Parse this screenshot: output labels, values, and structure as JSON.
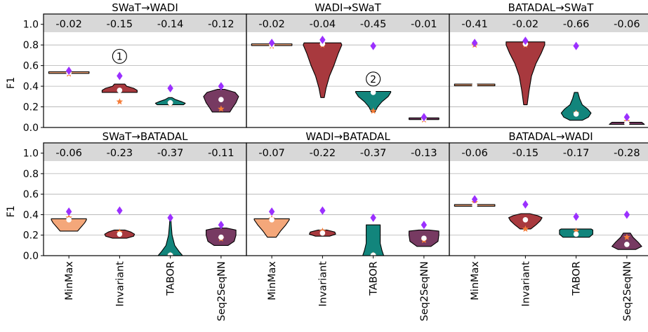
{
  "chart_data": {
    "type": "violin",
    "ylabel": "F1",
    "ylim": [
      0,
      1.1
    ],
    "yticks": [
      "0.0",
      "0.2",
      "0.4",
      "0.6",
      "0.8",
      "1.0"
    ],
    "categories": [
      "MinMax",
      "Invariant",
      "TABOR",
      "Seq2SeqNN"
    ],
    "colors": {
      "MinMax": "#f4a77a",
      "Invariant": "#a8393e",
      "TABOR": "#12857c",
      "Seq2SeqNN": "#773a62",
      "band": "#d8d8d8",
      "diamond": "#9b30ff",
      "star": "#f57c38",
      "median": "#ffffff"
    },
    "marker_legend": {
      "diamond": "purple diamond marker",
      "star": "orange star marker",
      "dot": "white dot (median)"
    },
    "panels": [
      {
        "title": "SWaT→WADI",
        "deltas": [
          "-0.02",
          "-0.15",
          "-0.14",
          "-0.12"
        ],
        "violins": [
          {
            "profile": [
              [
                0.53,
                0.23
              ],
              [
                0.535,
                0.23
              ]
            ],
            "median": 0.533,
            "diamond": 0.55,
            "star": 0.52
          },
          {
            "profile": [
              [
                0.34,
                0.2
              ],
              [
                0.36,
                0.2
              ],
              [
                0.38,
                0.16
              ],
              [
                0.4,
                0.08
              ],
              [
                0.42,
                0.06
              ]
            ],
            "median": 0.36,
            "diamond": 0.5,
            "star": 0.25
          },
          {
            "profile": [
              [
                0.22,
                0.15
              ],
              [
                0.235,
                0.17
              ],
              [
                0.25,
                0.13
              ],
              [
                0.27,
                0.06
              ],
              [
                0.29,
                0.02
              ]
            ],
            "median": 0.24,
            "diamond": 0.38,
            "star": 0.235
          },
          {
            "profile": [
              [
                0.15,
                0.1
              ],
              [
                0.19,
                0.13
              ],
              [
                0.24,
                0.17
              ],
              [
                0.3,
                0.2
              ],
              [
                0.34,
                0.16
              ],
              [
                0.37,
                0.04
              ]
            ],
            "median": 0.27,
            "diamond": 0.4,
            "star": 0.18
          }
        ],
        "annotation": {
          "text": "1",
          "category": "Invariant",
          "y": 0.69
        }
      },
      {
        "title": "WADI→SWaT",
        "deltas": [
          "-0.02",
          "-0.04",
          "-0.45",
          "-0.01"
        ],
        "violins": [
          {
            "profile": [
              [
                0.8,
                0.23
              ],
              [
                0.805,
                0.23
              ]
            ],
            "median": 0.8,
            "diamond": 0.82,
            "star": 0.79
          },
          {
            "profile": [
              [
                0.29,
                0.02
              ],
              [
                0.38,
                0.04
              ],
              [
                0.5,
                0.08
              ],
              [
                0.6,
                0.13
              ],
              [
                0.72,
                0.18
              ],
              [
                0.8,
                0.22
              ],
              [
                0.82,
                0.21
              ]
            ],
            "median": 0.81,
            "diamond": 0.85,
            "star": 0.8
          },
          {
            "profile": [
              [
                0.15,
                0.02
              ],
              [
                0.2,
                0.05
              ],
              [
                0.25,
                0.1
              ],
              [
                0.3,
                0.17
              ],
              [
                0.34,
                0.2
              ],
              [
                0.35,
                0.2
              ]
            ],
            "median": 0.34,
            "diamond": 0.79,
            "star": 0.16
          },
          {
            "profile": [
              [
                0.08,
                0.17
              ],
              [
                0.09,
                0.17
              ]
            ],
            "median": 0.085,
            "diamond": 0.1,
            "star": 0.075
          }
        ],
        "annotation": {
          "text": "2",
          "category": "TABOR",
          "y": 0.47
        }
      },
      {
        "title": "BATADAL→SWaT",
        "deltas": [
          "-0.41",
          "-0.02",
          "-0.66",
          "-0.06"
        ],
        "violins": [
          {
            "profile": [
              [
                0.405,
                0.23
              ],
              [
                0.42,
                0.23
              ]
            ],
            "median": 0.41,
            "diamond": 0.82,
            "star": 0.8
          },
          {
            "profile": [
              [
                0.22,
                0.02
              ],
              [
                0.35,
                0.04
              ],
              [
                0.5,
                0.07
              ],
              [
                0.62,
                0.12
              ],
              [
                0.72,
                0.18
              ],
              [
                0.8,
                0.22
              ],
              [
                0.83,
                0.22
              ]
            ],
            "median": 0.81,
            "diamond": 0.84,
            "star": 0.8
          },
          {
            "profile": [
              [
                0.07,
                0.07
              ],
              [
                0.1,
                0.14
              ],
              [
                0.14,
                0.17
              ],
              [
                0.18,
                0.13
              ],
              [
                0.22,
                0.07
              ],
              [
                0.28,
                0.04
              ],
              [
                0.34,
                0.02
              ]
            ],
            "median": 0.13,
            "diamond": 0.79,
            "star": 0.14
          },
          {
            "profile": [
              [
                0.03,
                0.2
              ],
              [
                0.05,
                0.17
              ]
            ],
            "median": 0.04,
            "diamond": 0.1,
            "star": 0.06
          }
        ],
        "annotation": null
      },
      {
        "title": "SWaT→BATADAL",
        "deltas": [
          "-0.06",
          "-0.23",
          "-0.37",
          "-0.11"
        ],
        "violins": [
          {
            "profile": [
              [
                0.24,
                0.1
              ],
              [
                0.28,
                0.14
              ],
              [
                0.32,
                0.18
              ],
              [
                0.35,
                0.2
              ],
              [
                0.36,
                0.2
              ]
            ],
            "median": 0.35,
            "diamond": 0.43,
            "star": 0.37
          },
          {
            "profile": [
              [
                0.17,
                0.08
              ],
              [
                0.19,
                0.16
              ],
              [
                0.21,
                0.17
              ],
              [
                0.23,
                0.13
              ],
              [
                0.25,
                0.06
              ]
            ],
            "median": 0.21,
            "diamond": 0.44,
            "star": 0.23
          },
          {
            "profile": [
              [
                0.0,
                0.14
              ],
              [
                0.04,
                0.1
              ],
              [
                0.1,
                0.05
              ],
              [
                0.2,
                0.02
              ],
              [
                0.3,
                0.01
              ],
              [
                0.37,
                0.005
              ]
            ],
            "median": 0.005,
            "diamond": 0.37,
            "star": 0.005
          },
          {
            "profile": [
              [
                0.1,
                0.08
              ],
              [
                0.14,
                0.15
              ],
              [
                0.2,
                0.17
              ],
              [
                0.25,
                0.17
              ],
              [
                0.27,
                0.06
              ]
            ],
            "median": 0.18,
            "diamond": 0.3,
            "star": 0.165
          }
        ],
        "annotation": null
      },
      {
        "title": "WADI→BATADAL",
        "deltas": [
          "-0.07",
          "-0.22",
          "-0.37",
          "-0.13"
        ],
        "violins": [
          {
            "profile": [
              [
                0.18,
                0.05
              ],
              [
                0.24,
                0.1
              ],
              [
                0.3,
                0.16
              ],
              [
                0.35,
                0.2
              ],
              [
                0.36,
                0.2
              ]
            ],
            "median": 0.35,
            "diamond": 0.43,
            "star": 0.36
          },
          {
            "profile": [
              [
                0.19,
                0.08
              ],
              [
                0.21,
                0.15
              ],
              [
                0.23,
                0.14
              ],
              [
                0.25,
                0.05
              ]
            ],
            "median": 0.22,
            "diamond": 0.44,
            "star": 0.24
          },
          {
            "profile": [
              [
                0.0,
                0.12
              ],
              [
                0.05,
                0.1
              ],
              [
                0.12,
                0.08
              ],
              [
                0.2,
                0.08
              ],
              [
                0.28,
                0.08
              ],
              [
                0.3,
                0.08
              ]
            ],
            "median": 0.005,
            "diamond": 0.37,
            "star": 0.005
          },
          {
            "profile": [
              [
                0.09,
                0.08
              ],
              [
                0.14,
                0.16
              ],
              [
                0.2,
                0.17
              ],
              [
                0.24,
                0.17
              ],
              [
                0.25,
                0.06
              ]
            ],
            "median": 0.17,
            "diamond": 0.3,
            "star": 0.15
          }
        ],
        "annotation": null
      },
      {
        "title": "BATADAL→WADI",
        "deltas": [
          "-0.06",
          "-0.15",
          "-0.17",
          "-0.28"
        ],
        "violins": [
          {
            "profile": [
              [
                0.485,
                0.23
              ],
              [
                0.495,
                0.23
              ]
            ],
            "median": 0.49,
            "diamond": 0.55,
            "star": 0.52
          },
          {
            "profile": [
              [
                0.26,
                0.06
              ],
              [
                0.3,
                0.12
              ],
              [
                0.34,
                0.17
              ],
              [
                0.37,
                0.19
              ],
              [
                0.39,
                0.14
              ],
              [
                0.41,
                0.05
              ]
            ],
            "median": 0.35,
            "diamond": 0.5,
            "star": 0.26
          },
          {
            "profile": [
              [
                0.18,
                0.15
              ],
              [
                0.21,
                0.19
              ],
              [
                0.25,
                0.19
              ],
              [
                0.26,
                0.17
              ]
            ],
            "median": 0.21,
            "diamond": 0.38,
            "star": 0.24
          },
          {
            "profile": [
              [
                0.06,
                0.1
              ],
              [
                0.09,
                0.17
              ],
              [
                0.13,
                0.13
              ],
              [
                0.18,
                0.07
              ],
              [
                0.22,
                0.04
              ]
            ],
            "median": 0.11,
            "diamond": 0.4,
            "star": 0.18
          }
        ],
        "annotation": null
      }
    ]
  }
}
